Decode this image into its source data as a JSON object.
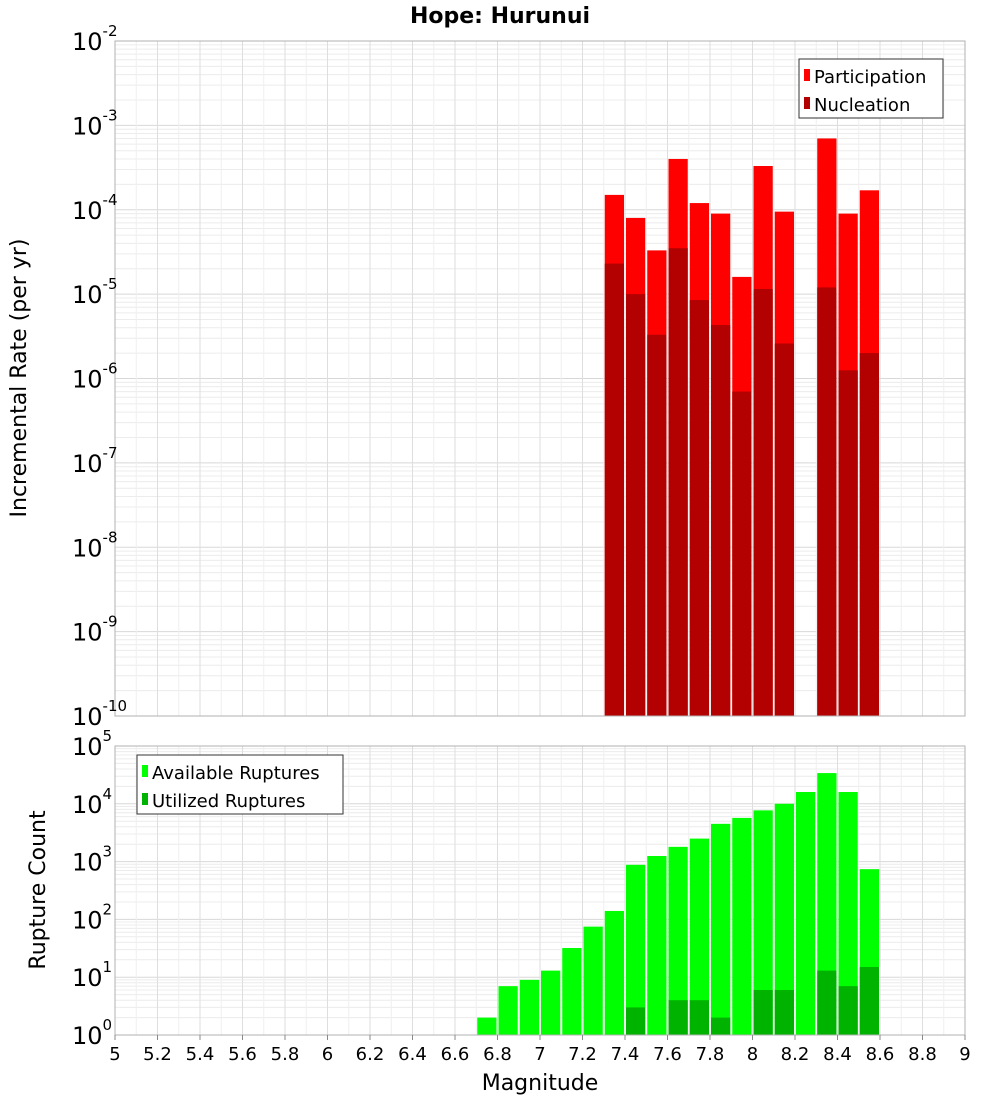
{
  "title": "Hope: Hurunui",
  "xlabel": "Magnitude",
  "chart_data": [
    {
      "type": "bar",
      "ylabel": "Incremental Rate (per yr)",
      "yscale": "log",
      "ylim": [
        1e-10,
        0.01
      ],
      "xlim": [
        5,
        9
      ],
      "bin_width": 0.1,
      "grid": true,
      "legend_position": "top-right",
      "x": [
        7.35,
        7.45,
        7.55,
        7.65,
        7.75,
        7.85,
        7.95,
        8.05,
        8.15,
        8.35,
        8.45,
        8.55
      ],
      "series": [
        {
          "name": "Participation",
          "color": "#ff0000",
          "values": [
            0.00015,
            8e-05,
            3.3e-05,
            0.0004,
            0.00012,
            9e-05,
            1.6e-05,
            0.00033,
            9.5e-05,
            0.0007,
            9e-05,
            0.00017
          ]
        },
        {
          "name": "Nucleation",
          "color": "#b30000",
          "values": [
            2.3e-05,
            1e-05,
            3.3e-06,
            3.5e-05,
            8.5e-06,
            4.3e-06,
            7e-07,
            1.15e-05,
            2.6e-06,
            1.2e-05,
            1.25e-06,
            2e-06
          ]
        }
      ]
    },
    {
      "type": "bar",
      "ylabel": "Rupture Count",
      "yscale": "log",
      "ylim": [
        1,
        100000
      ],
      "xlim": [
        5,
        9
      ],
      "bin_width": 0.1,
      "grid": true,
      "legend_position": "top-left",
      "x": [
        6.55,
        6.75,
        6.85,
        6.95,
        7.05,
        7.15,
        7.25,
        7.35,
        7.45,
        7.55,
        7.65,
        7.75,
        7.85,
        7.95,
        8.05,
        8.15,
        8.25,
        8.35,
        8.45,
        8.55
      ],
      "series": [
        {
          "name": "Available Ruptures",
          "color": "#00ff00",
          "values": [
            1,
            2,
            7,
            9,
            13,
            32,
            75,
            140,
            880,
            1250,
            1800,
            2500,
            4500,
            5700,
            7700,
            10000,
            16000,
            34000,
            16000,
            740
          ]
        },
        {
          "name": "Utilized Ruptures",
          "color": "#00b300",
          "values": [
            0,
            0,
            0,
            0,
            0,
            0,
            0,
            1,
            3,
            1,
            4,
            4,
            2,
            1,
            6,
            6,
            0,
            13,
            7,
            15
          ]
        }
      ]
    }
  ],
  "x_ticks": [
    "5",
    "5.2",
    "5.4",
    "5.6",
    "5.8",
    "6",
    "6.2",
    "6.4",
    "6.6",
    "6.8",
    "7",
    "7.2",
    "7.4",
    "7.6",
    "7.8",
    "8",
    "8.2",
    "8.4",
    "8.6",
    "8.8",
    "9"
  ],
  "y_ticks_top": [
    {
      "base": "10",
      "exp": "-10"
    },
    {
      "base": "10",
      "exp": "-9"
    },
    {
      "base": "10",
      "exp": "-8"
    },
    {
      "base": "10",
      "exp": "-7"
    },
    {
      "base": "10",
      "exp": "-6"
    },
    {
      "base": "10",
      "exp": "-5"
    },
    {
      "base": "10",
      "exp": "-4"
    },
    {
      "base": "10",
      "exp": "-3"
    },
    {
      "base": "10",
      "exp": "-2"
    }
  ],
  "y_ticks_bottom": [
    {
      "base": "10",
      "exp": "0"
    },
    {
      "base": "10",
      "exp": "1"
    },
    {
      "base": "10",
      "exp": "2"
    },
    {
      "base": "10",
      "exp": "3"
    },
    {
      "base": "10",
      "exp": "4"
    },
    {
      "base": "10",
      "exp": "5"
    }
  ]
}
